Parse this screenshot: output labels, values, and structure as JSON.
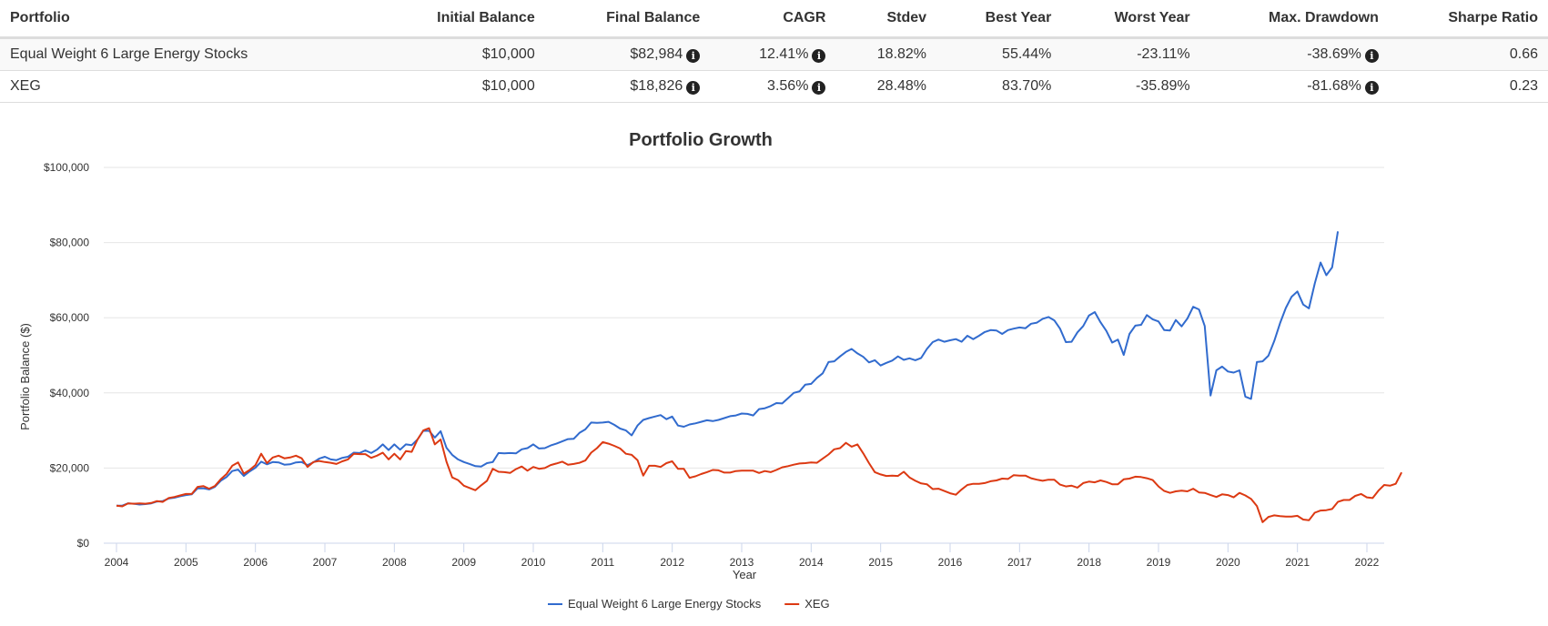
{
  "table": {
    "headers": [
      "Portfolio",
      "Initial Balance",
      "Final Balance",
      "CAGR",
      "Stdev",
      "Best Year",
      "Worst Year",
      "Max. Drawdown",
      "Sharpe Ratio"
    ],
    "rows": [
      {
        "portfolio": "Equal Weight 6 Large Energy Stocks",
        "initial_balance": "$10,000",
        "final_balance": "$82,984",
        "cagr": "12.41%",
        "stdev": "18.82%",
        "best_year": "55.44%",
        "worst_year": "-23.11%",
        "max_drawdown": "-38.69%",
        "sharpe_ratio": "0.66"
      },
      {
        "portfolio": "XEG",
        "initial_balance": "$10,000",
        "final_balance": "$18,826",
        "cagr": "3.56%",
        "stdev": "28.48%",
        "best_year": "83.70%",
        "worst_year": "-35.89%",
        "max_drawdown": "-81.68%",
        "sharpe_ratio": "0.23"
      }
    ],
    "info_icon": "info-circle-icon"
  },
  "chart_data": {
    "type": "line",
    "title": "Portfolio Growth",
    "xlabel": "Year",
    "ylabel": "Portfolio Balance ($)",
    "ylim": [
      0,
      100000
    ],
    "xlim": [
      2004.0,
      2022.17
    ],
    "yticks": [
      0,
      20000,
      40000,
      60000,
      80000,
      100000
    ],
    "ytick_labels": [
      "$0",
      "$20,000",
      "$40,000",
      "$60,000",
      "$80,000",
      "$100,000"
    ],
    "xticks": [
      2004,
      2005,
      2006,
      2007,
      2008,
      2009,
      2010,
      2011,
      2012,
      2013,
      2014,
      2015,
      2016,
      2017,
      2018,
      2019,
      2020,
      2021,
      2022
    ],
    "grid": true,
    "legend_position": "bottom-center",
    "series": [
      {
        "name": "Equal Weight 6 Large Energy Stocks",
        "color": "#316bce",
        "x_start": 2004.0,
        "step": 0.08333,
        "values": [
          10000,
          10000,
          10600,
          10500,
          10300,
          10400,
          10600,
          11100,
          11200,
          11900,
          12100,
          12500,
          12800,
          13000,
          14600,
          14600,
          14300,
          15000,
          16600,
          17600,
          19200,
          19600,
          17900,
          19100,
          20100,
          21700,
          21000,
          21600,
          21500,
          20900,
          21000,
          21500,
          21600,
          20800,
          21500,
          22500,
          23000,
          22300,
          22100,
          22700,
          23000,
          24100,
          24000,
          24700,
          24000,
          24900,
          26300,
          24800,
          26300,
          24900,
          26300,
          26100,
          27600,
          29900,
          29900,
          28100,
          29800,
          25400,
          23500,
          22300,
          21600,
          21100,
          20500,
          20400,
          21300,
          21600,
          24000,
          23900,
          24000,
          23900,
          25000,
          25300,
          26300,
          25200,
          25300,
          26000,
          26500,
          27100,
          27700,
          27800,
          29400,
          30300,
          32100,
          32000,
          32100,
          32300,
          31500,
          30500,
          30000,
          28700,
          31300,
          32800,
          33300,
          33700,
          34100,
          33000,
          33700,
          31300,
          31000,
          31600,
          31900,
          32300,
          32700,
          32500,
          32800,
          33300,
          33800,
          34000,
          34500,
          34400,
          34000,
          35700,
          35900,
          36500,
          37300,
          37200,
          38600,
          40000,
          40400,
          42200,
          42400,
          44000,
          45200,
          48200,
          48400,
          49700,
          50900,
          51700,
          50500,
          49600,
          48100,
          48700,
          47300,
          48000,
          48600,
          49700,
          48800,
          49200,
          48700,
          49300,
          51700,
          53500,
          54200,
          53600,
          54000,
          54300,
          53600,
          55200,
          54300,
          55200,
          56200,
          56700,
          56600,
          55700,
          56700,
          57100,
          57400,
          57200,
          58400,
          58700,
          59700,
          60200,
          59300,
          57100,
          53500,
          53600,
          56100,
          57800,
          60600,
          61500,
          58800,
          56500,
          53400,
          54200,
          50100,
          55700,
          57900,
          58100,
          60700,
          59600,
          59000,
          56700,
          56600,
          59400,
          57700,
          59800,
          62900,
          62200,
          57800,
          39300,
          46000,
          47000,
          45700,
          45400,
          46000,
          39000,
          38400,
          48200,
          48400,
          49900,
          53800,
          58500,
          62600,
          65600,
          67000,
          63500,
          62500,
          69100,
          74700,
          71300,
          73400,
          82984
        ]
      },
      {
        "name": "XEG",
        "color": "#dc3912",
        "x_start": 2004.0,
        "step": 0.08333,
        "values": [
          10000,
          9800,
          10600,
          10500,
          10600,
          10500,
          10700,
          11200,
          11000,
          12000,
          12300,
          12700,
          13100,
          13100,
          15000,
          15200,
          14500,
          15200,
          17000,
          18400,
          20600,
          21500,
          18500,
          19500,
          20800,
          23800,
          21300,
          22800,
          23300,
          22600,
          22800,
          23300,
          22600,
          20300,
          21600,
          21900,
          21600,
          21400,
          21100,
          21800,
          22300,
          23800,
          23700,
          23700,
          22700,
          23300,
          24100,
          22300,
          23800,
          22300,
          24500,
          24300,
          27600,
          30000,
          30600,
          26300,
          27600,
          21700,
          17500,
          16800,
          15300,
          14700,
          14100,
          15400,
          16600,
          19800,
          19000,
          18900,
          18700,
          19700,
          20400,
          19300,
          20300,
          19800,
          20000,
          20800,
          21200,
          21700,
          20900,
          21100,
          21400,
          22000,
          24100,
          25300,
          26900,
          26500,
          25900,
          25200,
          23800,
          23500,
          22100,
          18000,
          20600,
          20600,
          20300,
          21300,
          21800,
          19800,
          19800,
          17400,
          17800,
          18400,
          18900,
          19500,
          19400,
          18800,
          18800,
          19200,
          19300,
          19300,
          19300,
          18700,
          19200,
          18900,
          19500,
          20200,
          20500,
          20900,
          21200,
          21300,
          21500,
          21400,
          22500,
          23600,
          25000,
          25300,
          26700,
          25700,
          26300,
          23900,
          21300,
          18900,
          18300,
          17900,
          18000,
          17900,
          19000,
          17500,
          16600,
          15900,
          15700,
          14400,
          14500,
          13900,
          13300,
          12900,
          14300,
          15500,
          15800,
          15800,
          16000,
          16500,
          16700,
          17200,
          17100,
          18100,
          18000,
          18000,
          17300,
          16900,
          16600,
          16900,
          16900,
          15600,
          15100,
          15300,
          14800,
          16000,
          16400,
          16200,
          16700,
          16300,
          15700,
          15700,
          17000,
          17200,
          17700,
          17600,
          17300,
          16800,
          15100,
          13900,
          13400,
          13800,
          14000,
          13800,
          14500,
          13500,
          13400,
          12800,
          12300,
          13000,
          12800,
          12200,
          13400,
          12700,
          11800,
          9900,
          5600,
          7000,
          7400,
          7200,
          7100,
          7100,
          7300,
          6300,
          6100,
          8100,
          8700,
          8800,
          9100,
          11000,
          11500,
          11500,
          12600,
          13100,
          12200,
          12000,
          14000,
          15500,
          15300,
          15800,
          18826
        ]
      }
    ]
  },
  "legend": [
    {
      "label": "Equal Weight 6 Large Energy Stocks",
      "color": "#316bce"
    },
    {
      "label": "XEG",
      "color": "#dc3912"
    }
  ]
}
